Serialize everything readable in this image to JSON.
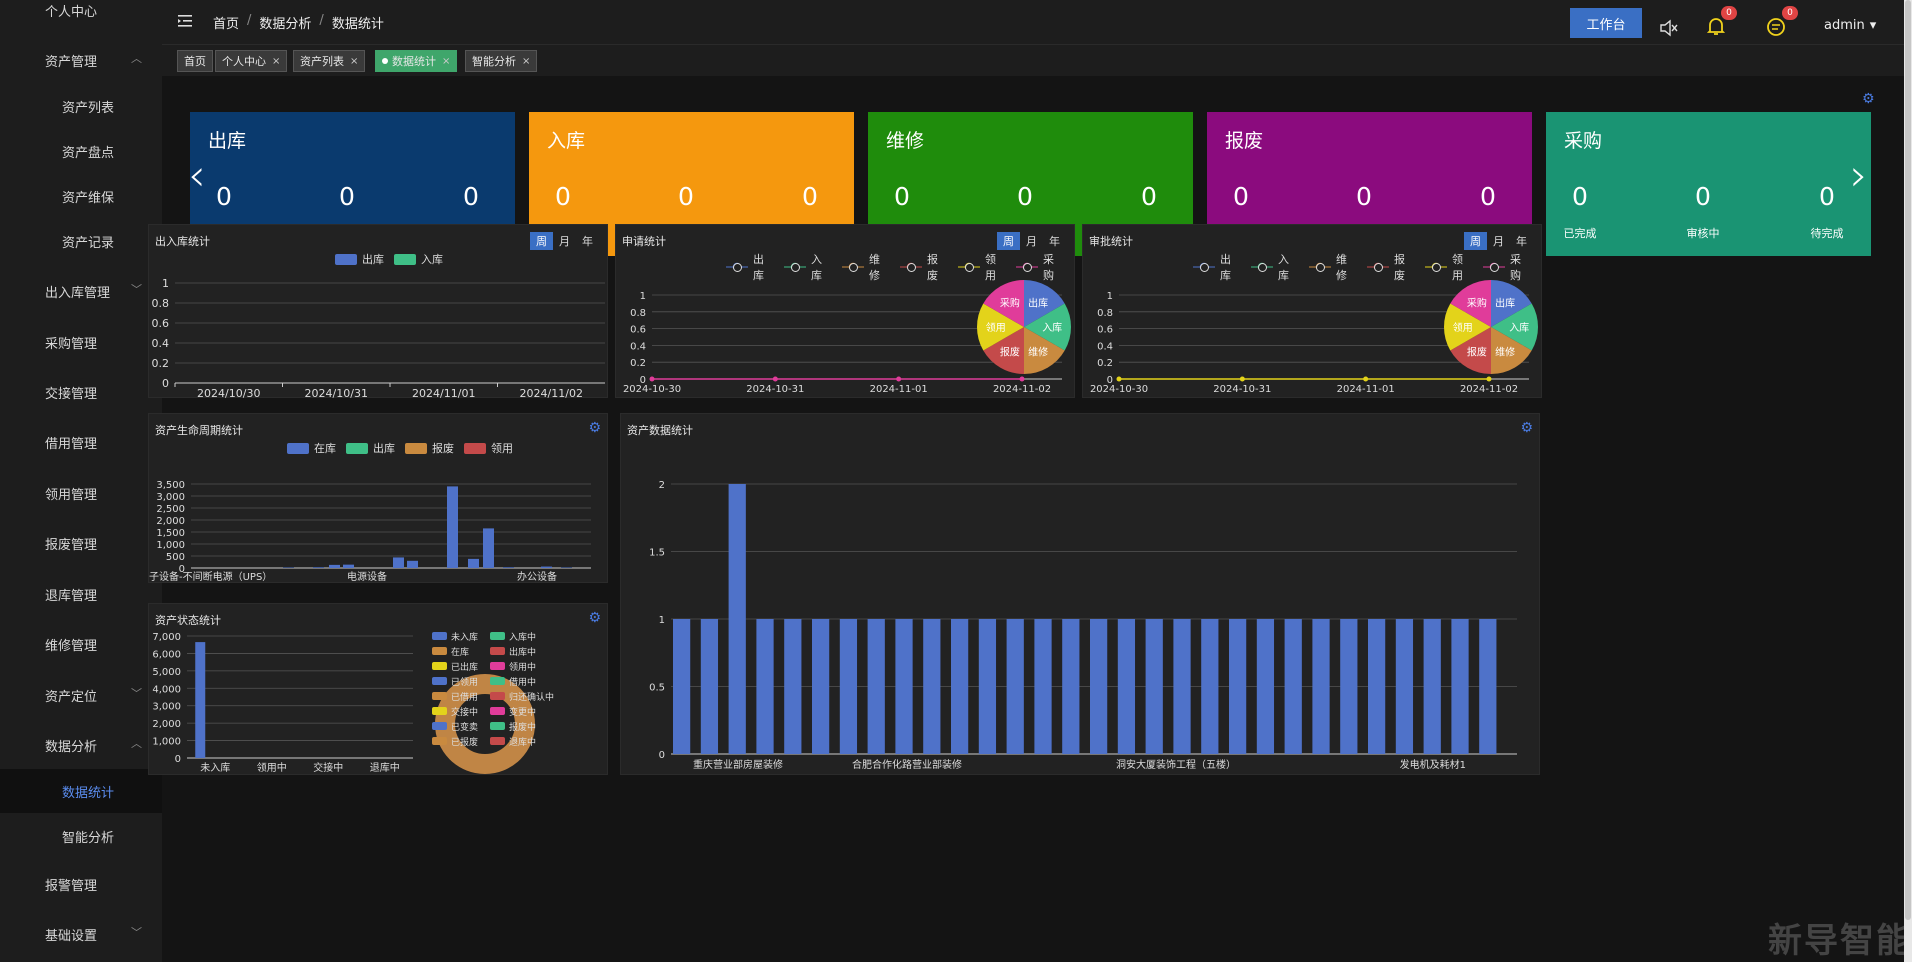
{
  "sidebar": {
    "items": [
      {
        "label": "个人中心",
        "caret": ""
      },
      {
        "label": "资产管理",
        "caret": "︿"
      },
      {
        "label": "资产列表",
        "caret": ""
      },
      {
        "label": "资产盘点",
        "caret": ""
      },
      {
        "label": "资产维保",
        "caret": ""
      },
      {
        "label": "资产记录",
        "caret": ""
      },
      {
        "label": "出入库管理",
        "caret": "﹀"
      },
      {
        "label": "采购管理",
        "caret": ""
      },
      {
        "label": "交接管理",
        "caret": ""
      },
      {
        "label": "借用管理",
        "caret": ""
      },
      {
        "label": "领用管理",
        "caret": ""
      },
      {
        "label": "报废管理",
        "caret": ""
      },
      {
        "label": "退库管理",
        "caret": ""
      },
      {
        "label": "维修管理",
        "caret": ""
      },
      {
        "label": "资产定位",
        "caret": "﹀"
      },
      {
        "label": "数据分析",
        "caret": "︿"
      },
      {
        "label": "数据统计",
        "caret": ""
      },
      {
        "label": "智能分析",
        "caret": ""
      },
      {
        "label": "报警管理",
        "caret": ""
      },
      {
        "label": "基础设置",
        "caret": "﹀"
      }
    ]
  },
  "header": {
    "menu_icon": "menu-fold-icon",
    "breadcrumb": [
      "首页",
      "数据分析",
      "数据统计"
    ],
    "sep": "/",
    "workbench": "工作台",
    "mute_icon": "mute-icon",
    "bell_icon": "bell-icon",
    "bell_badge": "0",
    "chat_icon": "chat-icon",
    "chat_badge": "0",
    "user": "admin",
    "user_caret": "▾"
  },
  "tags": [
    {
      "label": "首页",
      "close": ""
    },
    {
      "label": "个人中心",
      "close": "×"
    },
    {
      "label": "资产列表",
      "close": "×"
    },
    {
      "label": "数据统计",
      "close": "×"
    },
    {
      "label": "智能分析",
      "close": "×"
    }
  ],
  "stats": {
    "completed": "已完成",
    "reviewing": "审核中",
    "pending": "待完成",
    "prev": "‹",
    "next": "›",
    "cards": [
      {
        "title": "出库",
        "color": "#0a3a6e",
        "values": [
          "0",
          "0",
          "0"
        ]
      },
      {
        "title": "入库",
        "color": "#f5980e",
        "values": [
          "0",
          "0",
          "0"
        ]
      },
      {
        "title": "维修",
        "color": "#1f8c0c",
        "values": [
          "0",
          "0",
          "0"
        ]
      },
      {
        "title": "报废",
        "color": "#8b0b7e",
        "values": [
          "0",
          "0",
          "0"
        ]
      },
      {
        "title": "采购",
        "color": "#1a9473",
        "values": [
          "0",
          "0",
          "0"
        ]
      }
    ]
  },
  "periods": [
    "周",
    "月",
    "年"
  ],
  "panels": {
    "inout": {
      "title": "出入库统计"
    },
    "apply": {
      "title": "申请统计"
    },
    "approve": {
      "title": "审批统计"
    },
    "lifecycle": {
      "title": "资产生命周期统计"
    },
    "quantity": {
      "title": "资产数据统计"
    },
    "status": {
      "title": "资产状态统计"
    }
  },
  "colors": {
    "blue": "#4f72c9",
    "green": "#3fbf87",
    "orange": "#c98a3f",
    "red": "#c44a4a",
    "yellow": "#e3d31a",
    "magenta": "#e03c9a",
    "slate": "#7a8acf"
  },
  "chart_data": [
    {
      "id": "inout",
      "type": "bar",
      "title": "出入库统计",
      "categories": [
        "2024/10/30",
        "2024/10/31",
        "2024/11/01",
        "2024/11/02"
      ],
      "series": [
        {
          "name": "出库",
          "values": [
            0,
            0,
            0,
            0
          ]
        },
        {
          "name": "入库",
          "values": [
            0,
            0,
            0,
            0
          ]
        }
      ],
      "yticks": [
        "0",
        "0.2",
        "0.4",
        "0.6",
        "0.8",
        "1"
      ],
      "ylim": [
        0,
        1
      ]
    },
    {
      "id": "apply",
      "type": "line",
      "title": "申请统计",
      "categories": [
        "2024-10-30",
        "2024-10-31",
        "2024-11-01",
        "2024-11-02"
      ],
      "series": [
        {
          "name": "出库",
          "values": [
            0,
            0,
            0,
            0
          ]
        },
        {
          "name": "入库",
          "values": [
            0,
            0,
            0,
            0
          ]
        },
        {
          "name": "维修",
          "values": [
            0,
            0,
            0,
            0
          ]
        },
        {
          "name": "报废",
          "values": [
            0,
            0,
            0,
            0
          ]
        },
        {
          "name": "领用",
          "values": [
            0,
            0,
            0,
            0
          ]
        },
        {
          "name": "采购",
          "values": [
            0,
            0,
            0,
            0
          ]
        }
      ],
      "yticks": [
        "0",
        "0.2",
        "0.4",
        "0.6",
        "0.8",
        "1"
      ],
      "ylim": [
        0,
        1
      ],
      "pie": {
        "labels": [
          "出库",
          "入库",
          "维修",
          "报废",
          "领用",
          "采购"
        ],
        "values": [
          1,
          1,
          1,
          1,
          1,
          1
        ]
      }
    },
    {
      "id": "approve",
      "type": "line",
      "title": "审批统计",
      "categories": [
        "2024-10-30",
        "2024-10-31",
        "2024-11-01",
        "2024-11-02"
      ],
      "series": [
        {
          "name": "出库",
          "values": [
            0,
            0,
            0,
            0
          ]
        },
        {
          "name": "入库",
          "values": [
            0,
            0,
            0,
            0
          ]
        },
        {
          "name": "维修",
          "values": [
            0,
            0,
            0,
            0
          ]
        },
        {
          "name": "报废",
          "values": [
            0,
            0,
            0,
            0
          ]
        },
        {
          "name": "领用",
          "values": [
            0,
            0,
            0,
            0
          ]
        },
        {
          "name": "采购",
          "values": [
            0,
            0,
            0,
            0
          ]
        }
      ],
      "yticks": [
        "0",
        "0.2",
        "0.4",
        "0.6",
        "0.8",
        "1"
      ],
      "ylim": [
        0,
        1
      ],
      "pie": {
        "labels": [
          "出库",
          "入库",
          "维修",
          "报废",
          "领用",
          "采购"
        ],
        "values": [
          1,
          1,
          1,
          1,
          1,
          1
        ]
      }
    },
    {
      "id": "lifecycle",
      "type": "bar",
      "title": "资产生命周期统计",
      "series": [
        {
          "name": "在库",
          "values": [
            20,
            30,
            130,
            140,
            440,
            300,
            3400,
            380,
            1650,
            30,
            60,
            20
          ]
        },
        {
          "name": "出库",
          "values": []
        },
        {
          "name": "报废",
          "values": []
        },
        {
          "name": "领用",
          "values": []
        }
      ],
      "xticks": [
        "子设备-不间断电源（UPS）",
        "电源设备",
        "办公设备"
      ],
      "yticks": [
        "0",
        "500",
        "1,000",
        "1,500",
        "2,000",
        "2,500",
        "3,000",
        "3,500"
      ],
      "ylim": [
        0,
        3500
      ]
    },
    {
      "id": "status",
      "type": "bar",
      "title": "资产状态统计",
      "series": [
        {
          "name": "未入库",
          "values": [
            6650,
            0,
            0,
            0
          ]
        }
      ],
      "xticks": [
        "未入库",
        "领用中",
        "交接中",
        "退库中"
      ],
      "yticks": [
        "0",
        "1,000",
        "2,000",
        "3,000",
        "4,000",
        "5,000",
        "6,000",
        "7,000"
      ],
      "ylim": [
        0,
        7000
      ],
      "legend": [
        "未入库",
        "入库中",
        "在库",
        "出库中",
        "已出库",
        "领用中",
        "已领用",
        "借用中",
        "已借用",
        "归还确认中",
        "交接中",
        "变更中",
        "已变卖",
        "报废中",
        "已报废",
        "退库中"
      ]
    },
    {
      "id": "quantity",
      "type": "bar",
      "title": "资产数据统计",
      "values": [
        1,
        1,
        2,
        1,
        1,
        1,
        1,
        1,
        1,
        1,
        1,
        1,
        1,
        1,
        1,
        1,
        1,
        1,
        1,
        1,
        1,
        1,
        1,
        1,
        1,
        1,
        1,
        1,
        1,
        1
      ],
      "xticks": [
        "重庆营业部房屋装修",
        "合肥合作化路营业部装修",
        "洞安大厦装饰工程（五楼）",
        "发电机及耗材1"
      ],
      "yticks": [
        "0",
        "0.5",
        "1",
        "1.5",
        "2"
      ],
      "ylim": [
        0,
        2
      ]
    }
  ],
  "watermark": "新导智能"
}
